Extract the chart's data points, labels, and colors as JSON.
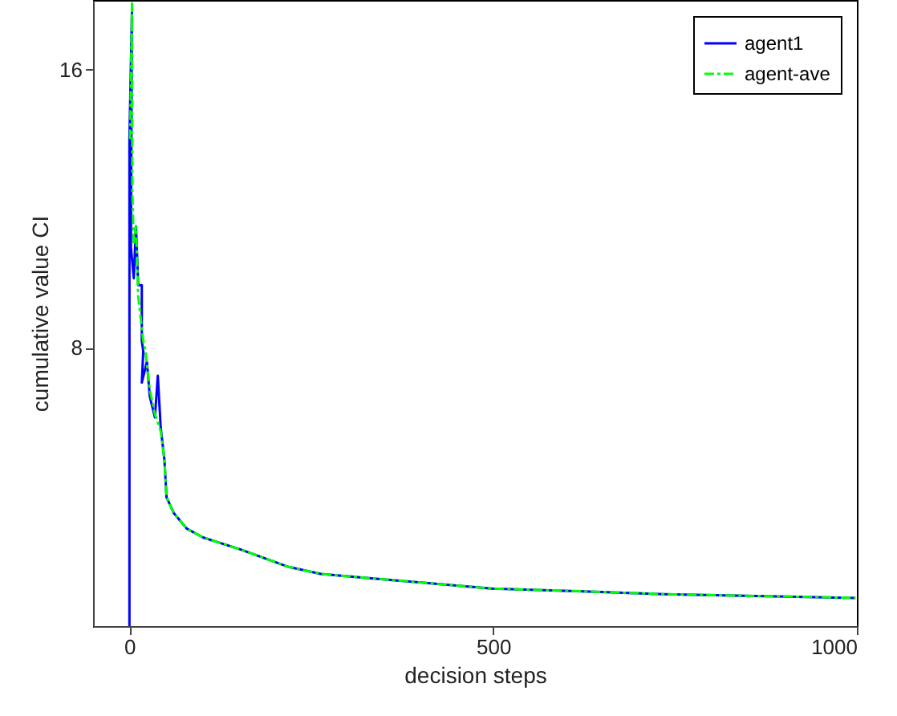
{
  "chart_data": {
    "type": "line",
    "xlabel": "decision steps",
    "ylabel": "cumulative value CI",
    "xlim": [
      -50,
      1000
    ],
    "ylim": [
      0,
      18
    ],
    "xticks": [
      0,
      500,
      1000
    ],
    "yticks": [
      8,
      16
    ],
    "grid": false,
    "legend": "top right",
    "series": [
      {
        "name": "agent1",
        "color": "#0000ff",
        "line_style": "solid",
        "x": [
          0,
          0,
          3.5,
          2,
          6,
          9,
          12,
          17,
          17,
          19,
          17,
          24,
          28,
          35,
          39,
          43,
          48,
          51,
          61,
          79,
          101,
          153,
          219,
          263,
          329,
          498,
          623,
          734,
          998
        ],
        "values": [
          0,
          14,
          17.7,
          10.9,
          10.0,
          11.5,
          9.8,
          9.8,
          8.2,
          7.9,
          7.0,
          7.6,
          6.6,
          6.0,
          7.2,
          5.7,
          4.8,
          3.7,
          3.25,
          2.8,
          2.55,
          2.2,
          1.7,
          1.5,
          1.38,
          1.08,
          1.0,
          0.92,
          0.81
        ]
      },
      {
        "name": "agent-ave",
        "color": "#00ff00",
        "line_style": "dashdot",
        "x": [
          1,
          3.5,
          4,
          6,
          9,
          12,
          19,
          22,
          28,
          35,
          43,
          48,
          51,
          61,
          79,
          101,
          153,
          219,
          263,
          329,
          498,
          623,
          734,
          998
        ],
        "values": [
          14,
          17.9,
          12.5,
          11.0,
          11.5,
          9.5,
          8.2,
          7.9,
          6.8,
          6.1,
          5.6,
          4.8,
          3.7,
          3.25,
          2.8,
          2.55,
          2.2,
          1.7,
          1.5,
          1.38,
          1.08,
          1.0,
          0.92,
          0.81
        ]
      }
    ]
  }
}
